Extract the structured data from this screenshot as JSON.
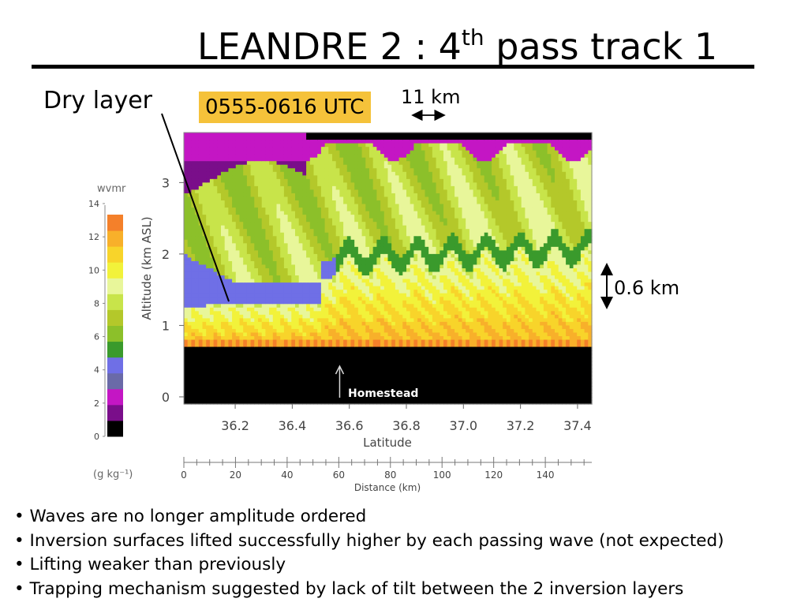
{
  "slide": {
    "title_main": "LEANDRE 2 : 4",
    "title_sup": "th",
    "title_tail": " pass track 1",
    "dry_layer_label": "Dry layer",
    "time_label": "0555-0616 UTC",
    "scale_11km_label": "11 km",
    "scale_06km_label": "0.6 km",
    "bullets": [
      "Waves are no longer amplitude ordered",
      "Inversion surfaces lifted successfully higher by each passing wave (not expected)",
      "Lifting weaker than previously",
      "Trapping mechanism suggested by lack of tilt between the 2 inversion layers"
    ]
  },
  "chart_data": {
    "type": "heatmap",
    "ylabel": "Altitude (km ASL)",
    "xlabel": "Latitude",
    "x2label": "Distance (km)",
    "ylim": [
      -0.1,
      3.7
    ],
    "xlim": [
      36.02,
      37.45
    ],
    "x2lim": [
      0,
      158
    ],
    "y_ticks": [
      "0",
      "1",
      "2",
      "3"
    ],
    "x_ticks": [
      "36.2",
      "36.4",
      "36.6",
      "36.8",
      "37.0",
      "37.2",
      "37.4"
    ],
    "x2_ticks": [
      "0",
      "20",
      "40",
      "60",
      "80",
      "100",
      "120",
      "140"
    ],
    "annotation": "Homestead",
    "annotation_lat": 36.58,
    "colorbar": {
      "title": "wvmr",
      "unit": "(g kg⁻¹)",
      "ticks": [
        "0",
        "2",
        "4",
        "6",
        "8",
        "10",
        "12",
        "14"
      ],
      "levels": [
        0,
        1,
        2,
        3,
        4,
        5,
        6,
        7,
        8,
        9,
        10,
        11,
        12,
        13
      ],
      "colors": [
        "#000000",
        "#7a0e8a",
        "#c416c4",
        "#6a6aa8",
        "#6f6fe6",
        "#3a9a2c",
        "#8cc02a",
        "#b4c82a",
        "#c8e44a",
        "#e8f69a",
        "#f2f23a",
        "#f8d42a",
        "#f8b02a",
        "#f4802a"
      ]
    },
    "ground_altitude_km": 0.7,
    "moist_layer_top_km": 1.3,
    "dry_layer_top_km": 1.6,
    "wave_crests_lat": [
      36.6,
      36.72,
      36.84,
      36.96,
      37.08,
      37.2,
      37.32,
      37.44
    ]
  }
}
